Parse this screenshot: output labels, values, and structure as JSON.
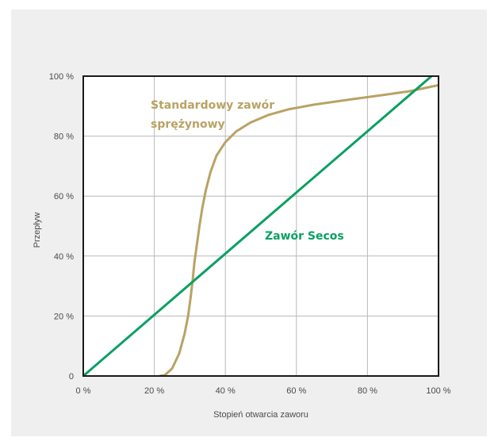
{
  "colors": {
    "background": "#ffffff",
    "panel": "#efefef",
    "plot_bg": "#ffffff",
    "grid": "#b9b9b9",
    "frame": "#1a1a1a",
    "spring_valve": "#b9a264",
    "secos_valve": "#0aa063"
  },
  "chart_data": {
    "type": "line",
    "title": "",
    "xlabel": "Stopień otwarcia zaworu",
    "ylabel": "Przepływ",
    "xlim": [
      0,
      100
    ],
    "ylim": [
      0,
      100
    ],
    "grid": true,
    "x_ticks": [
      0,
      20,
      40,
      60,
      80,
      100
    ],
    "y_ticks": [
      0,
      20,
      40,
      60,
      80,
      100
    ],
    "x_tick_labels": [
      "0 %",
      "20 %",
      "40 %",
      "60 %",
      "80 %",
      "100 %"
    ],
    "y_tick_labels": [
      "0",
      "20 %",
      "40 %",
      "60 %",
      "80 %",
      "100 %"
    ],
    "series": [
      {
        "name": "Standardowy zawór sprężynowy",
        "label_lines": [
          "Standardowy zawór",
          "sprężynowy"
        ],
        "color": "#b9a264",
        "points": [
          [
            21.5,
            0
          ],
          [
            23,
            0.3
          ],
          [
            25,
            2.5
          ],
          [
            27,
            7.5
          ],
          [
            28.5,
            14
          ],
          [
            29.5,
            20
          ],
          [
            30.2,
            26
          ],
          [
            30.8,
            32
          ],
          [
            31.3,
            38
          ],
          [
            32,
            44
          ],
          [
            32.7,
            50
          ],
          [
            33.5,
            56
          ],
          [
            34.5,
            62
          ],
          [
            35.8,
            68
          ],
          [
            37.5,
            73.5
          ],
          [
            40,
            78
          ],
          [
            43,
            81.5
          ],
          [
            47,
            84.5
          ],
          [
            52,
            87
          ],
          [
            58,
            89
          ],
          [
            65,
            90.5
          ],
          [
            75,
            92.2
          ],
          [
            85,
            93.8
          ],
          [
            92,
            95
          ],
          [
            100,
            97
          ]
        ]
      },
      {
        "name": "Zawór Secos",
        "label_lines": [
          "Zawór Secos"
        ],
        "color": "#0aa063",
        "points": [
          [
            0,
            0
          ],
          [
            100,
            102
          ]
        ]
      }
    ]
  }
}
